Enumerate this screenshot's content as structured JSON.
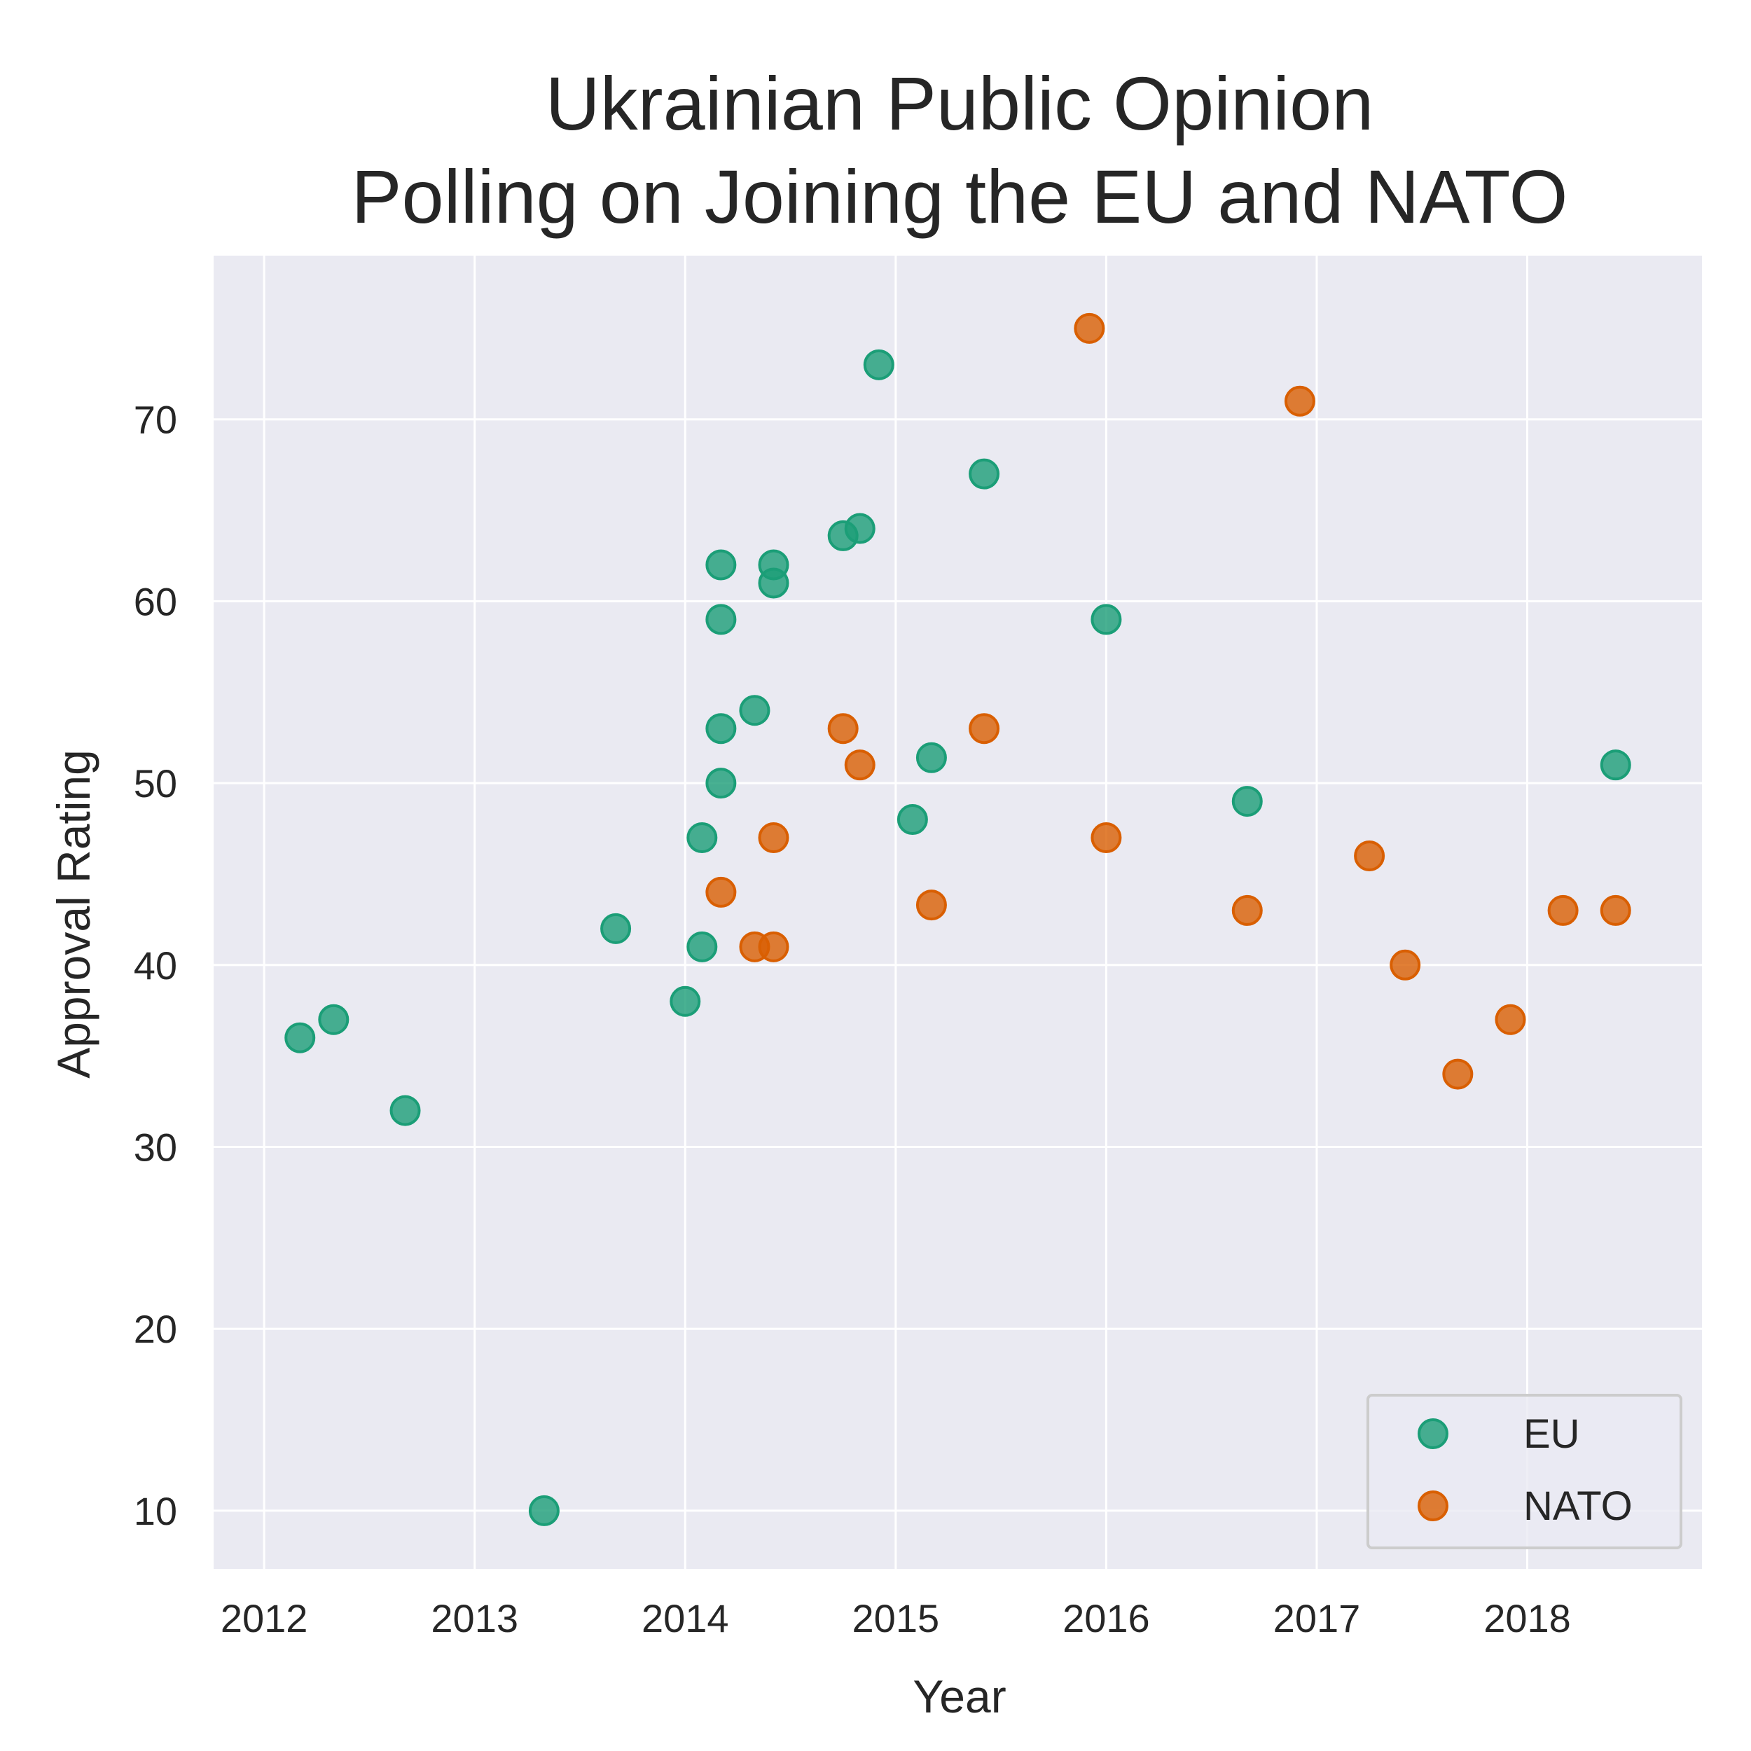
{
  "chart_data": {
    "type": "scatter",
    "title_lines": [
      "Ukrainian Public Opinion",
      "Polling on Joining the EU and NATO"
    ],
    "xlabel": "Year",
    "ylabel": "Approval Rating",
    "xlim": [
      2011.76,
      2018.83
    ],
    "ylim": [
      6.8,
      79
    ],
    "xticks": [
      2012,
      2013,
      2014,
      2015,
      2016,
      2017,
      2018
    ],
    "yticks": [
      10,
      20,
      30,
      40,
      50,
      60,
      70
    ],
    "grid": true,
    "legend_position": "lower-right",
    "background_color": "#EAEAF2",
    "series": [
      {
        "name": "EU",
        "color": "#1B9E77",
        "points": [
          {
            "x": 2012.17,
            "y": 36
          },
          {
            "x": 2012.33,
            "y": 37
          },
          {
            "x": 2012.67,
            "y": 32
          },
          {
            "x": 2013.33,
            "y": 10
          },
          {
            "x": 2013.67,
            "y": 42
          },
          {
            "x": 2014.0,
            "y": 38
          },
          {
            "x": 2014.08,
            "y": 41
          },
          {
            "x": 2014.08,
            "y": 47
          },
          {
            "x": 2014.17,
            "y": 50
          },
          {
            "x": 2014.17,
            "y": 53
          },
          {
            "x": 2014.17,
            "y": 59
          },
          {
            "x": 2014.17,
            "y": 62
          },
          {
            "x": 2014.33,
            "y": 54
          },
          {
            "x": 2014.42,
            "y": 61
          },
          {
            "x": 2014.42,
            "y": 62
          },
          {
            "x": 2014.75,
            "y": 63.6
          },
          {
            "x": 2014.83,
            "y": 64
          },
          {
            "x": 2014.92,
            "y": 73
          },
          {
            "x": 2015.08,
            "y": 48
          },
          {
            "x": 2015.17,
            "y": 51.4
          },
          {
            "x": 2015.42,
            "y": 67
          },
          {
            "x": 2016.0,
            "y": 59
          },
          {
            "x": 2016.67,
            "y": 49
          },
          {
            "x": 2018.42,
            "y": 51
          }
        ]
      },
      {
        "name": "NATO",
        "color": "#D95F02",
        "points": [
          {
            "x": 2014.17,
            "y": 44
          },
          {
            "x": 2014.33,
            "y": 41
          },
          {
            "x": 2014.42,
            "y": 41
          },
          {
            "x": 2014.42,
            "y": 47
          },
          {
            "x": 2014.75,
            "y": 53
          },
          {
            "x": 2014.83,
            "y": 51
          },
          {
            "x": 2015.17,
            "y": 43.3
          },
          {
            "x": 2015.42,
            "y": 53
          },
          {
            "x": 2015.92,
            "y": 75
          },
          {
            "x": 2016.0,
            "y": 47
          },
          {
            "x": 2016.67,
            "y": 43
          },
          {
            "x": 2016.92,
            "y": 71
          },
          {
            "x": 2017.25,
            "y": 46
          },
          {
            "x": 2017.42,
            "y": 40
          },
          {
            "x": 2017.67,
            "y": 34
          },
          {
            "x": 2017.92,
            "y": 37
          },
          {
            "x": 2018.17,
            "y": 43
          },
          {
            "x": 2018.42,
            "y": 43
          }
        ]
      }
    ]
  }
}
